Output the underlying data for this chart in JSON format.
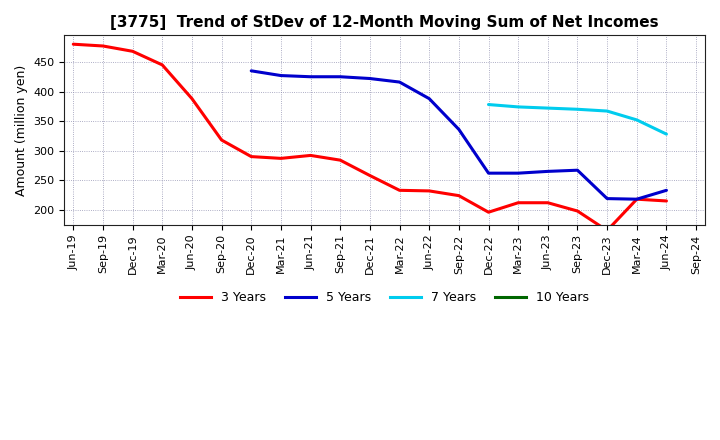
{
  "title": "[3775]  Trend of StDev of 12-Month Moving Sum of Net Incomes",
  "ylabel": "Amount (million yen)",
  "plot_bg_color": "#FFFFFF",
  "fig_bg_color": "#FFFFFF",
  "grid_color": "#8888AA",
  "x_labels": [
    "Jun-19",
    "Sep-19",
    "Dec-19",
    "Mar-20",
    "Jun-20",
    "Sep-20",
    "Dec-20",
    "Mar-21",
    "Jun-21",
    "Sep-21",
    "Dec-21",
    "Mar-22",
    "Jun-22",
    "Sep-22",
    "Dec-22",
    "Mar-23",
    "Jun-23",
    "Sep-23",
    "Dec-23",
    "Mar-24",
    "Jun-24",
    "Sep-24"
  ],
  "ylim": [
    175,
    495
  ],
  "yticks": [
    200,
    250,
    300,
    350,
    400,
    450
  ],
  "series": {
    "3 Years": {
      "color": "#FF0000",
      "x_indices": [
        0,
        1,
        2,
        3,
        4,
        5,
        6,
        7,
        8,
        9,
        10,
        11,
        12,
        13,
        14,
        15,
        16,
        17,
        18,
        19,
        20
      ],
      "y": [
        480,
        477,
        468,
        445,
        388,
        318,
        290,
        287,
        292,
        284,
        258,
        233,
        232,
        224,
        196,
        212,
        212,
        198,
        165,
        218,
        215
      ]
    },
    "5 Years": {
      "color": "#0000CC",
      "x_indices": [
        6,
        7,
        8,
        9,
        10,
        11,
        12,
        13,
        14,
        15,
        16,
        17,
        18,
        19,
        20
      ],
      "y": [
        435,
        427,
        425,
        425,
        422,
        416,
        388,
        336,
        262,
        262,
        265,
        267,
        219,
        218,
        233
      ]
    },
    "7 Years": {
      "color": "#00CCEE",
      "x_indices": [
        14,
        15,
        16,
        17,
        18,
        19,
        20
      ],
      "y": [
        378,
        374,
        372,
        370,
        367,
        352,
        328
      ]
    },
    "10 Years": {
      "color": "#006600",
      "x_indices": [],
      "y": []
    }
  },
  "legend_labels": [
    "3 Years",
    "5 Years",
    "7 Years",
    "10 Years"
  ],
  "legend_colors": [
    "#FF0000",
    "#0000CC",
    "#00CCEE",
    "#006600"
  ],
  "title_fontsize": 11,
  "axis_label_fontsize": 9,
  "tick_fontsize": 8,
  "legend_fontsize": 9,
  "linewidth": 2.2
}
